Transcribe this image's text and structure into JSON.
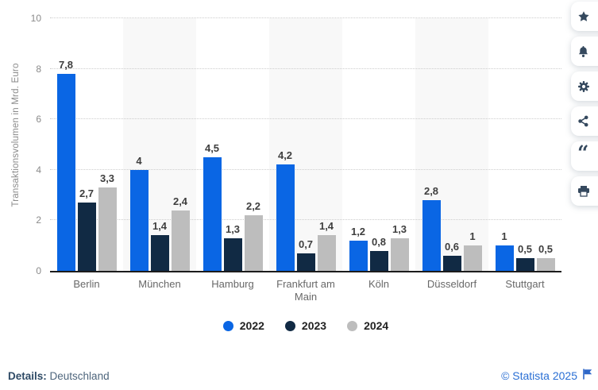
{
  "chart_data": {
    "type": "bar",
    "title": "",
    "ylabel": "Transaktionsvolumen in Mrd. Euro",
    "xlabel": "",
    "ylim": [
      0,
      10
    ],
    "yticks": [
      0,
      2,
      4,
      6,
      8,
      10
    ],
    "grid": "dotted-horizontal",
    "legend_position": "bottom",
    "decimal_separator": ",",
    "categories": [
      "Berlin",
      "München",
      "Hamburg",
      "Frankfurt am Main",
      "Köln",
      "Düsseldorf",
      "Stuttgart"
    ],
    "series": [
      {
        "name": "2022",
        "color": "#0a66e4",
        "values": [
          7.8,
          4,
          4.5,
          4.2,
          1.2,
          2.8,
          1
        ]
      },
      {
        "name": "2023",
        "color": "#112a44",
        "values": [
          2.7,
          1.4,
          1.3,
          0.7,
          0.8,
          0.6,
          0.5
        ]
      },
      {
        "name": "2024",
        "color": "#bdbdbd",
        "values": [
          3.3,
          2.4,
          2.2,
          1.4,
          1.3,
          1,
          0.5
        ]
      }
    ],
    "band_color": "#f8f8f8",
    "banded_category_indexes": [
      1,
      3,
      5
    ]
  },
  "footer": {
    "details_label": "Details:",
    "details_value": " Deutschland",
    "copyright": "© Statista 2025"
  },
  "toolbar": {
    "icons": [
      "star-icon",
      "bell-icon",
      "gear-icon",
      "share-icon",
      "quote-icon",
      "print-icon"
    ],
    "icon_color": "#35495e",
    "quote_glyph": "“"
  },
  "colors": {
    "accent_blue": "#0a66e4",
    "navy": "#112a44",
    "gray": "#bdbdbd",
    "link_blue": "#2a6fd4",
    "axis_line": "#1c1c1c"
  }
}
